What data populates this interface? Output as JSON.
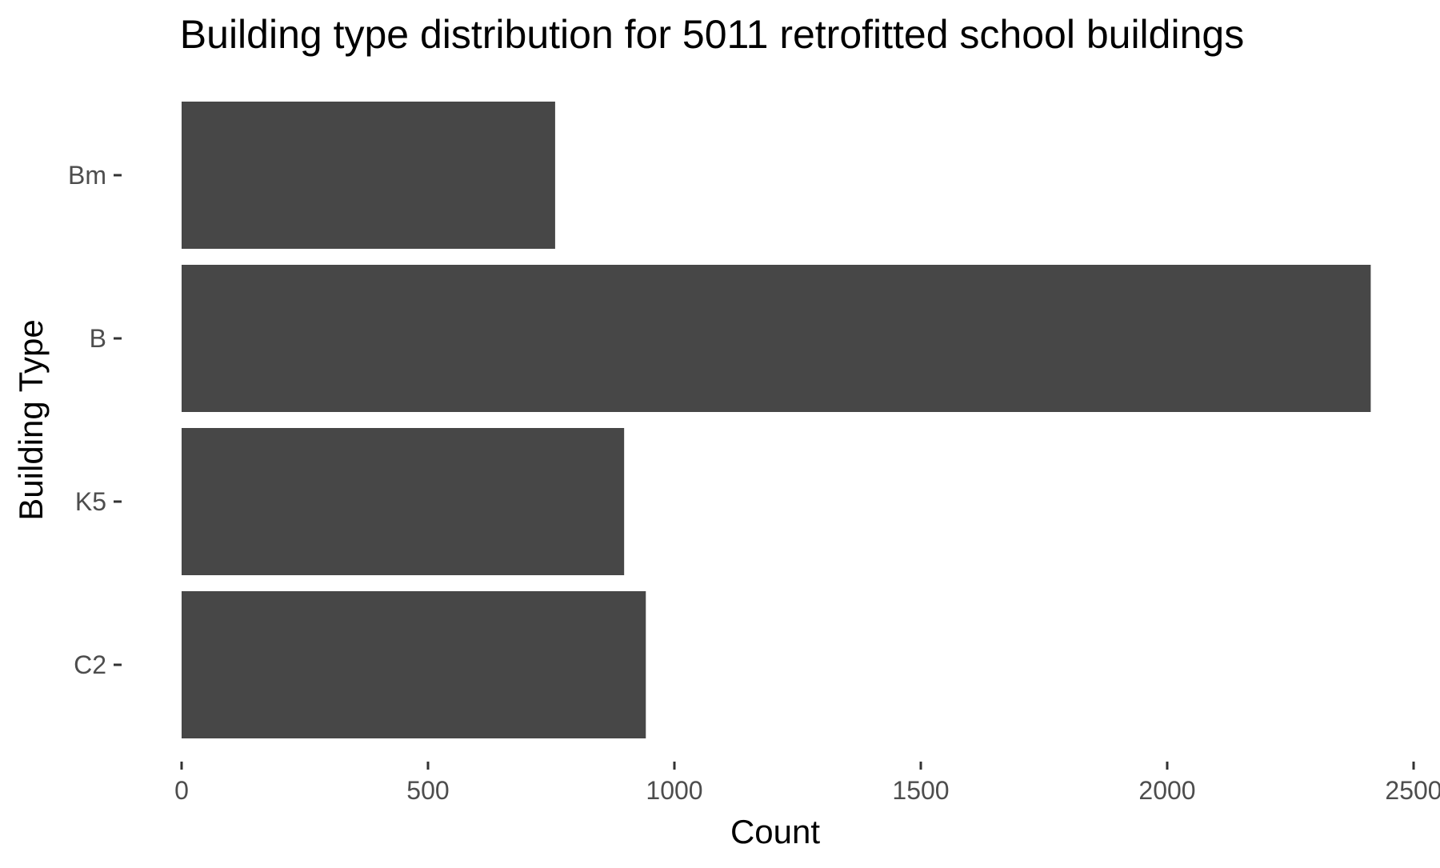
{
  "chart_data": {
    "type": "bar",
    "orientation": "horizontal",
    "title": "Building type distribution for 5011 retrofitted school buildings",
    "xlabel": "Count",
    "ylabel": "Building Type",
    "categories": [
      "Bm",
      "B",
      "K5",
      "C2"
    ],
    "values": [
      758,
      2413,
      898,
      942
    ],
    "xlim": [
      0,
      2500
    ],
    "xticks": [
      0,
      500,
      1000,
      1500,
      2000,
      2500
    ],
    "grid": false,
    "legend": "none",
    "colors": {
      "bar": "#474747",
      "tick_label": "#4d4d4d",
      "tick_mark": "#333333",
      "text": "#000000"
    }
  }
}
